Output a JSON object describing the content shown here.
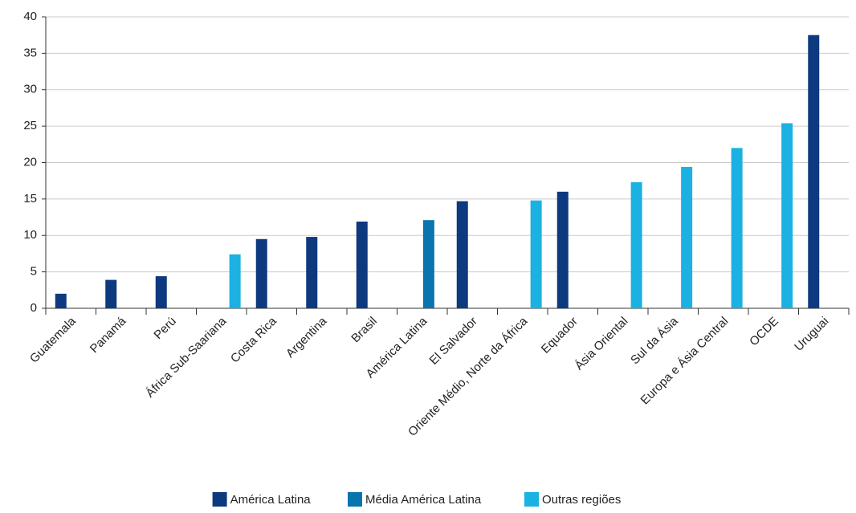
{
  "chart_data": {
    "type": "bar",
    "categories": [
      "Guatemala",
      "Panamá",
      "Perú",
      "África Sub-Saariana",
      "Costa Rica",
      "Argentina",
      "Brasil",
      "América Latina",
      "El Salvador",
      "Oriente Médio, Norte da África",
      "Equador",
      "Ásia Oriental",
      "Sul da Ásia",
      "Europa e Ásia Central",
      "OCDE",
      "Uruguai"
    ],
    "series": [
      {
        "name": "América Latina",
        "color": "#0d3a7f",
        "values": [
          2.0,
          3.9,
          4.4,
          null,
          9.5,
          9.8,
          11.9,
          null,
          14.7,
          null,
          16.0,
          null,
          null,
          null,
          null,
          37.5
        ]
      },
      {
        "name": "Média América Latina",
        "color": "#0a74ae",
        "values": [
          null,
          null,
          null,
          null,
          null,
          null,
          null,
          12.1,
          null,
          null,
          null,
          null,
          null,
          null,
          null,
          null
        ]
      },
      {
        "name": "Outras regiões",
        "color": "#1bb1e2",
        "values": [
          null,
          null,
          null,
          7.4,
          null,
          null,
          null,
          null,
          null,
          14.8,
          null,
          17.3,
          19.4,
          22.0,
          25.4,
          null
        ]
      }
    ],
    "ylim": [
      0,
      40
    ],
    "yticks": [
      0,
      5,
      10,
      15,
      20,
      25,
      30,
      35,
      40
    ],
    "grid": true
  }
}
